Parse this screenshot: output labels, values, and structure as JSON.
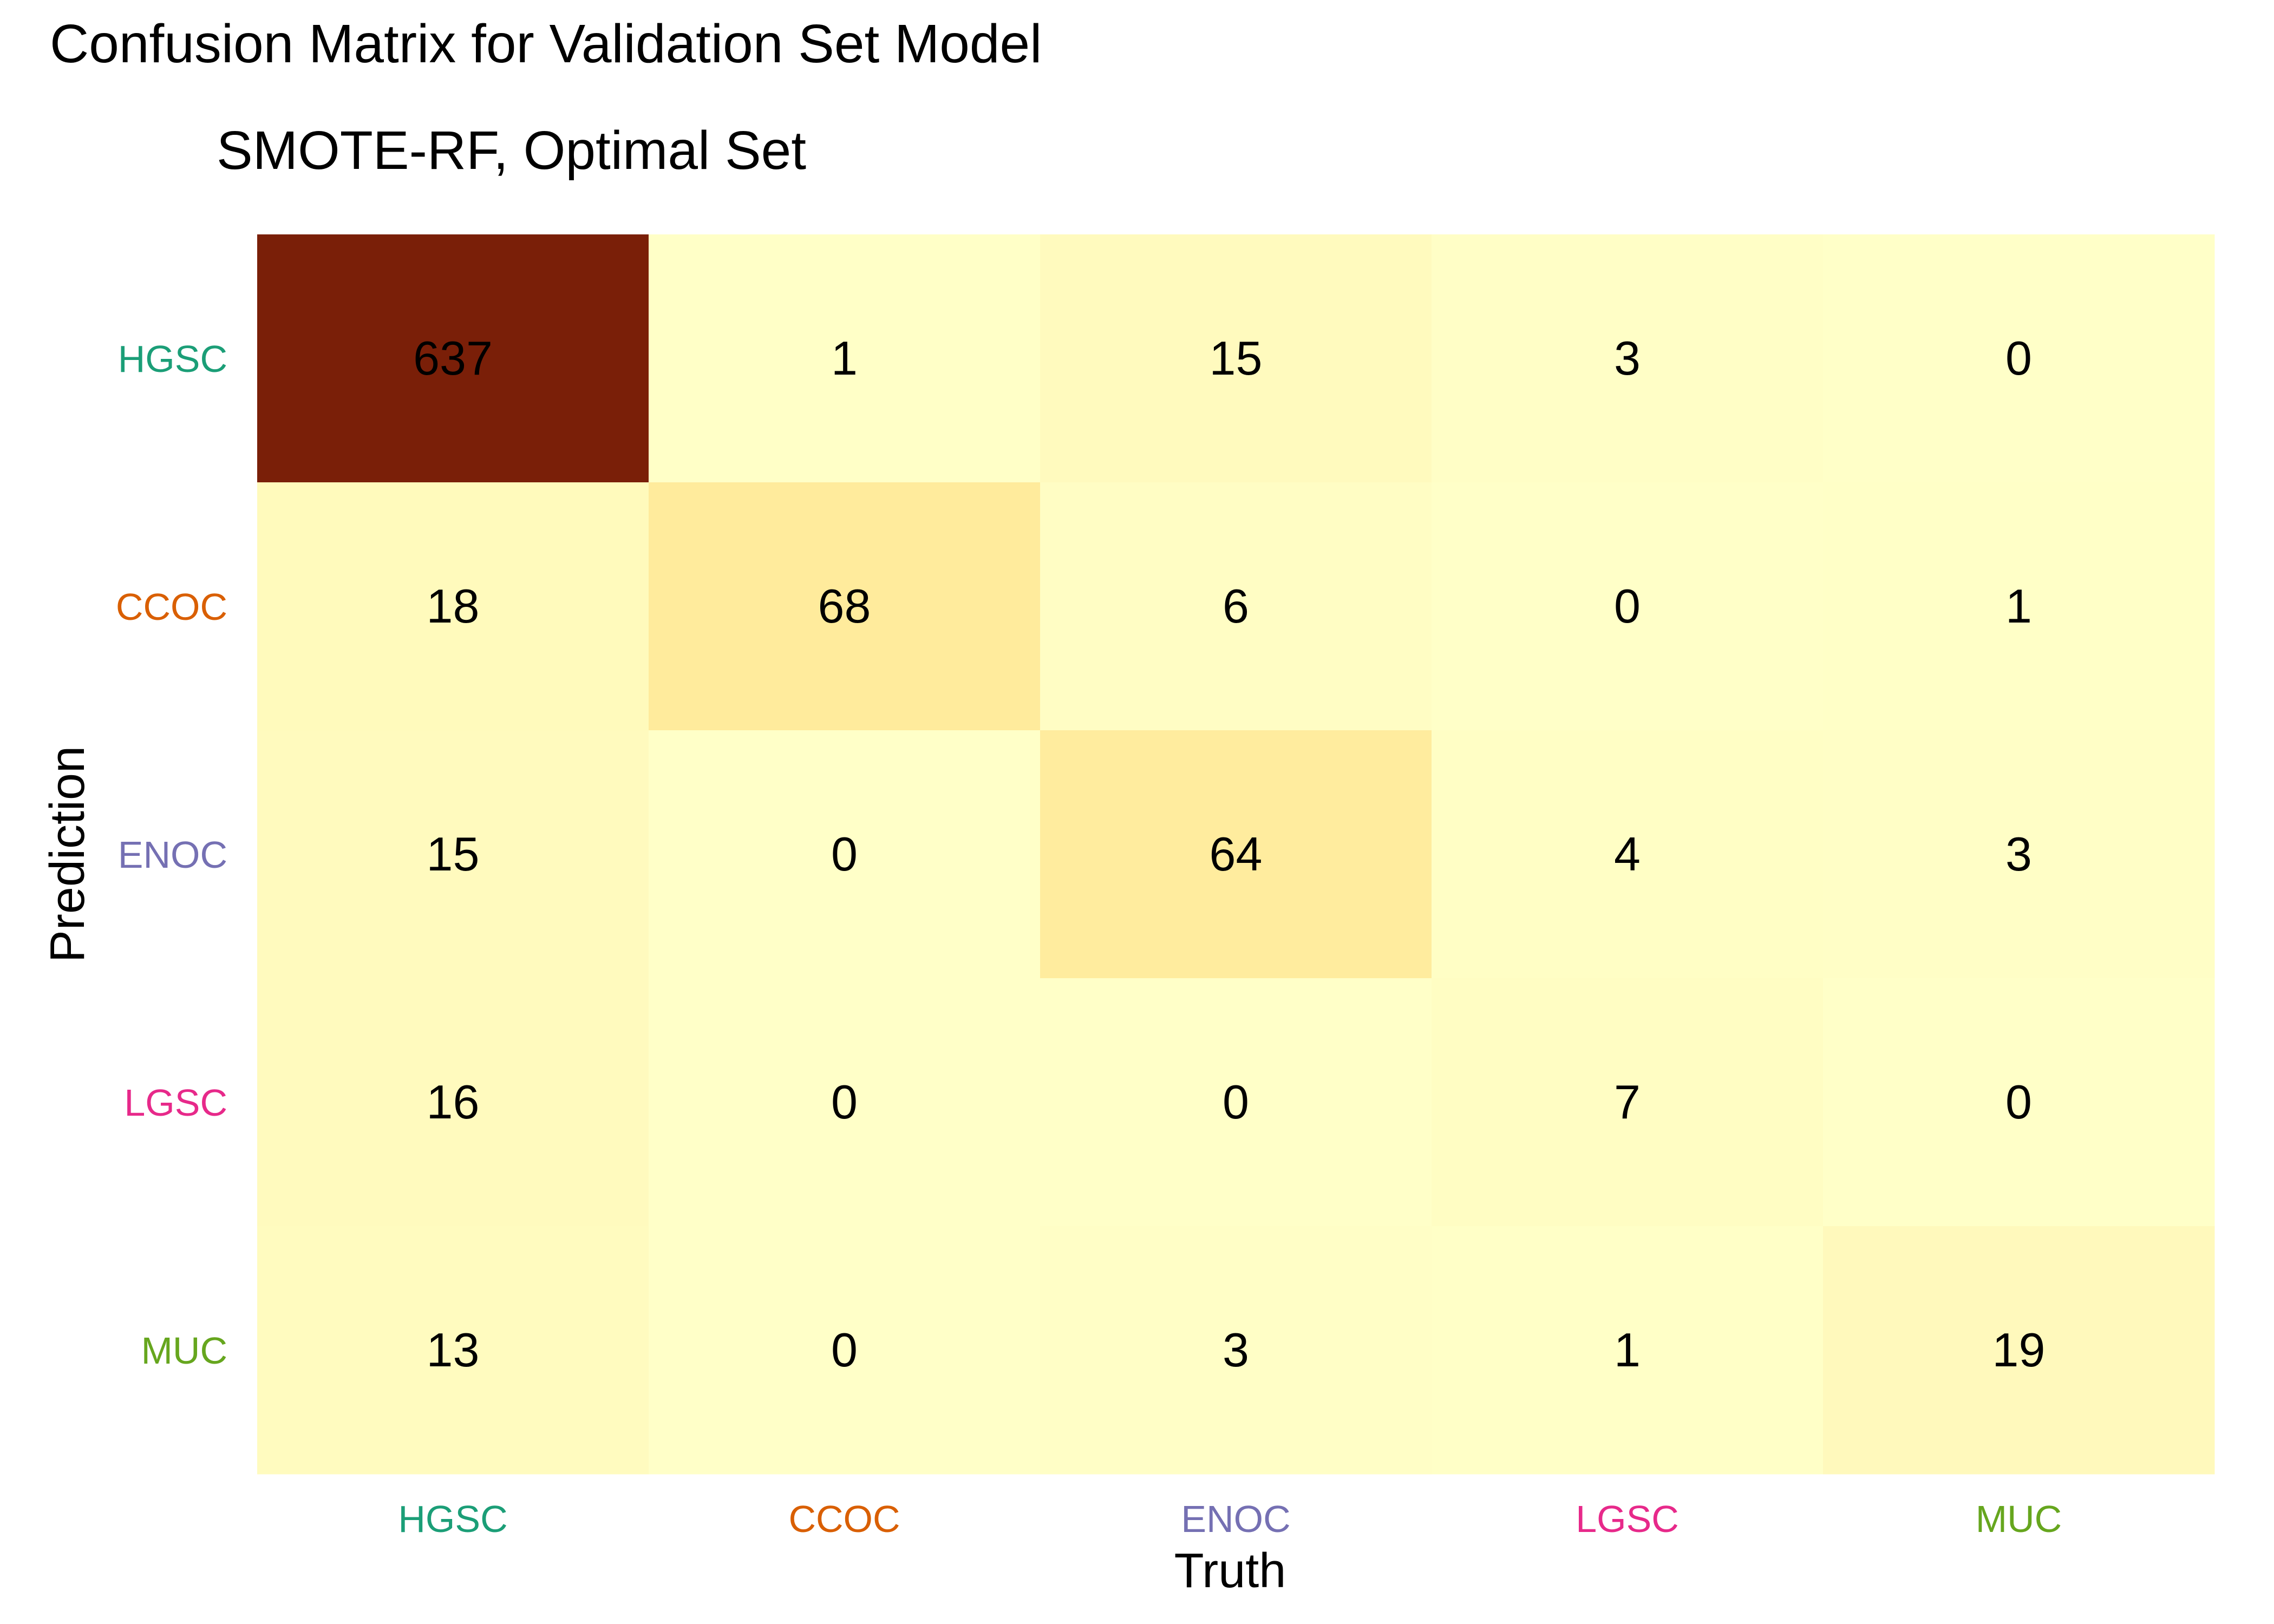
{
  "chart_data": {
    "type": "heatmap",
    "title": "Confusion Matrix for Validation Set Model",
    "subtitle": "SMOTE-RF, Optimal Set",
    "xlabel": "Truth",
    "ylabel": "Prediction",
    "x_categories": [
      "HGSC",
      "CCOC",
      "ENOC",
      "LGSC",
      "MUC"
    ],
    "y_categories": [
      "HGSC",
      "CCOC",
      "ENOC",
      "LGSC",
      "MUC"
    ],
    "category_colors": {
      "HGSC": "#1b9e77",
      "CCOC": "#d95f02",
      "ENOC": "#7570b3",
      "LGSC": "#e7298a",
      "MUC": "#66a61e"
    },
    "matrix": [
      [
        637,
        1,
        15,
        3,
        0
      ],
      [
        18,
        68,
        6,
        0,
        1
      ],
      [
        15,
        0,
        64,
        4,
        3
      ],
      [
        16,
        0,
        0,
        7,
        0
      ],
      [
        13,
        0,
        3,
        1,
        19
      ]
    ],
    "color_scale": {
      "low": "#ffffc8",
      "high": "#7a1f08",
      "min": 0,
      "max": 637
    },
    "legend": "none",
    "grid": false
  }
}
